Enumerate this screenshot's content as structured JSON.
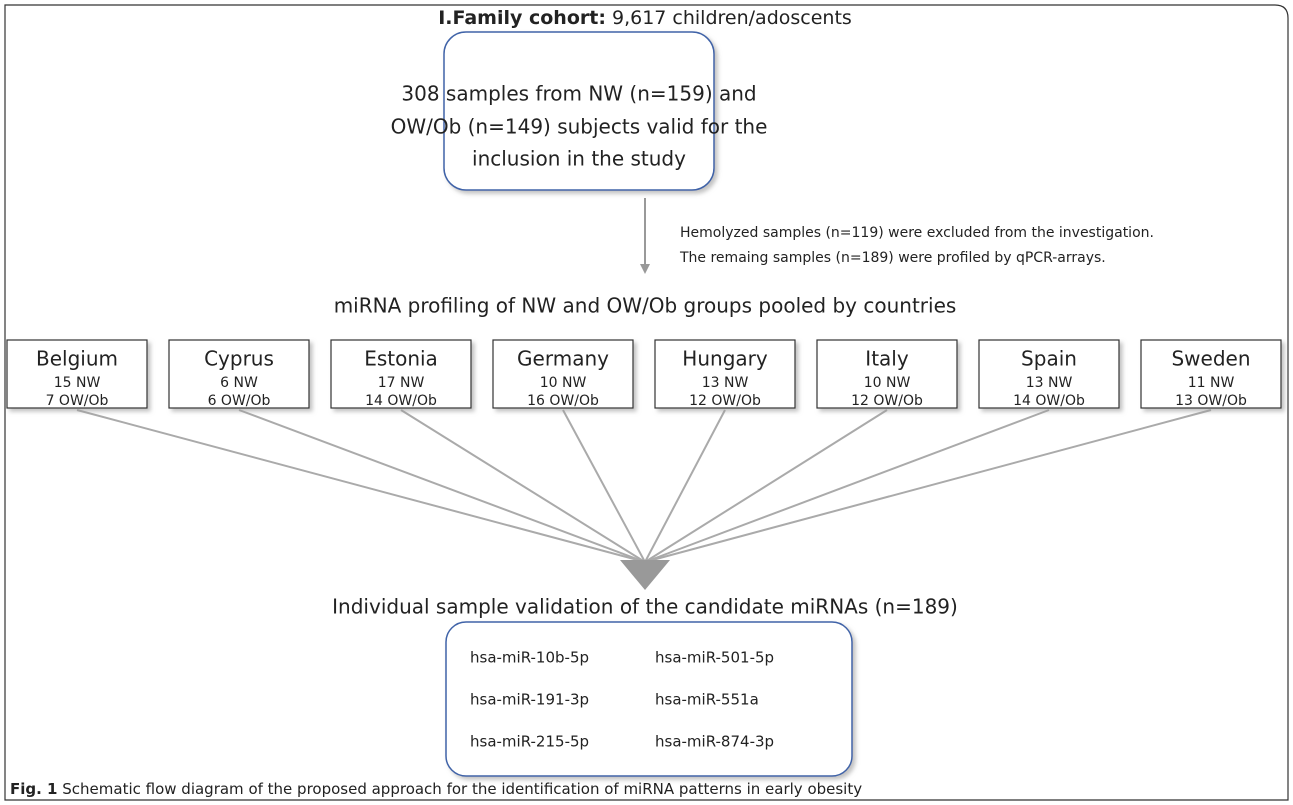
{
  "header": {
    "title_bold": "I.Family cohort:",
    "title_rest": "9,617 children/adoscents"
  },
  "top_box": {
    "lines": [
      "308 samples from NW (n=159) and",
      "OW/Ob (n=149) subjects valid for the",
      "inclusion in the study"
    ]
  },
  "note": {
    "lines": [
      "Hemolyzed samples (n=119) were excluded from the investigation.",
      "The remaing samples (n=189) were profiled by qPCR-arrays."
    ]
  },
  "section_heading": "miRNA profiling of NW and OW/Ob groups pooled by countries",
  "countries": [
    {
      "name": "Belgium",
      "nw": "15 NW",
      "owob": "7 OW/Ob"
    },
    {
      "name": "Cyprus",
      "nw": "6 NW",
      "owob": "6 OW/Ob"
    },
    {
      "name": "Estonia",
      "nw": "17 NW",
      "owob": "14 OW/Ob"
    },
    {
      "name": "Germany",
      "nw": "10 NW",
      "owob": "16 OW/Ob"
    },
    {
      "name": "Hungary",
      "nw": "13 NW",
      "owob": "12 OW/Ob"
    },
    {
      "name": "Italy",
      "nw": "10 NW",
      "owob": "12 OW/Ob"
    },
    {
      "name": "Spain",
      "nw": "13 NW",
      "owob": "14 OW/Ob"
    },
    {
      "name": "Sweden",
      "nw": "11 NW",
      "owob": "13 OW/Ob"
    }
  ],
  "validation_heading": "Individual sample validation of the candidate miRNAs (n=189)",
  "mirnas": [
    "hsa-miR-10b-5p",
    "hsa-miR-501-5p",
    "hsa-miR-191-3p",
    "hsa-miR-551a",
    "hsa-miR-215-5p",
    "hsa-miR-874-3p"
  ],
  "caption": {
    "label": "Fig. 1",
    "text": "Schematic flow diagram of the proposed approach for the identification of miRNA patterns in early obesity"
  }
}
